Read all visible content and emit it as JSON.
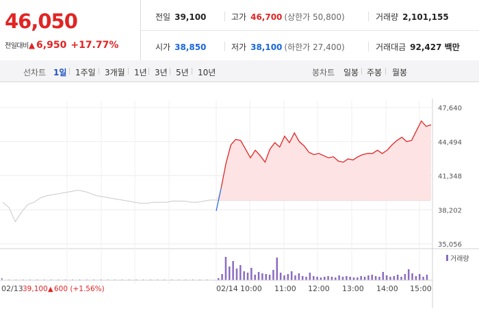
{
  "quote": {
    "price": "46,050",
    "change_label": "전일대비",
    "change_arrow": "▲",
    "change_value": "6,950",
    "change_percent": "+17.77%"
  },
  "stats": {
    "prev_close_label": "전일",
    "prev_close": "39,100",
    "high_label": "고가",
    "high": "46,700",
    "upper_limit": "(상한가 50,800)",
    "volume_label": "거래량",
    "volume": "2,101,155",
    "open_label": "시가",
    "open": "38,850",
    "low_label": "저가",
    "low": "38,100",
    "lower_limit": "(하한가 27,400)",
    "amount_label": "거래대금",
    "amount": "92,427 백만"
  },
  "line_tabs": {
    "label": "선차트",
    "items": [
      "1일",
      "1주일",
      "3개월",
      "1년",
      "3년",
      "5년",
      "10년"
    ],
    "active": "1일"
  },
  "candle_tabs": {
    "label": "봉차트",
    "items": [
      "일봉",
      "주봉",
      "월봉"
    ]
  },
  "colors": {
    "up": "#e12424",
    "down": "#1a66e0",
    "volume": "#8a6bc0",
    "prev_day": "#c8c8c8"
  },
  "chart_data": {
    "type": "line",
    "y_ticks": [
      "47,640",
      "44,494",
      "41,348",
      "38,202",
      "35,056"
    ],
    "ylim": [
      35056,
      47640
    ],
    "x_labels": [
      "02/14",
      "10:00",
      "11:00",
      "12:00",
      "13:00",
      "14:00",
      "15:00"
    ],
    "prev_day_label": "02/13",
    "prev_day_close": "39,100",
    "prev_day_arrow": "▲",
    "prev_day_change": "600 (+1.56%)",
    "reference_line": 39100,
    "volume_legend": "거래량",
    "series": [
      {
        "period": "prev_day",
        "values": [
          38900,
          38400,
          37100,
          38000,
          38700,
          38900,
          39300,
          39500,
          39600,
          39700,
          39800,
          39900,
          40000,
          39900,
          39700,
          39500,
          39400,
          39300,
          39200,
          39100,
          39000,
          38900,
          38800,
          38800,
          38900,
          38900,
          38900,
          39000,
          39000,
          39000,
          38900,
          38900,
          39000,
          39100,
          39100
        ]
      },
      {
        "period": "today",
        "values": [
          38100,
          40200,
          42500,
          44200,
          44700,
          44600,
          43800,
          43000,
          43700,
          43200,
          42600,
          43800,
          44400,
          44000,
          45000,
          44400,
          45300,
          44500,
          44100,
          43500,
          43300,
          43400,
          43200,
          43000,
          43100,
          42700,
          42600,
          42900,
          42800,
          43100,
          43300,
          43400,
          43400,
          43700,
          43400,
          43700,
          44200,
          44600,
          44900,
          44500,
          44600,
          45500,
          46400,
          45900,
          46050
        ]
      }
    ],
    "volume": {
      "prev_day": [
        3,
        1,
        1,
        0.5,
        0.5,
        0.5,
        0.5,
        0.5,
        0.5,
        0.5,
        0.5,
        0.5,
        0.5,
        0.5,
        0.5,
        0.5,
        0.5,
        0.5,
        0.5,
        0.5,
        0.5,
        0.5,
        0.5,
        0.5,
        0.5,
        0.5,
        0.5,
        0.5,
        0.5,
        0.5
      ],
      "today": [
        3,
        9,
        34,
        20,
        28,
        17,
        22,
        13,
        11,
        18,
        8,
        12,
        10,
        9,
        8,
        15,
        33,
        11,
        7,
        9,
        13,
        7,
        10,
        6,
        5,
        11,
        6,
        5,
        4,
        5,
        6,
        5,
        4,
        7,
        5,
        6,
        5,
        4,
        4,
        6,
        5,
        7,
        8,
        6,
        5,
        12,
        7,
        5,
        6,
        8,
        5,
        9,
        16,
        10,
        6,
        9,
        5,
        8
      ]
    }
  }
}
